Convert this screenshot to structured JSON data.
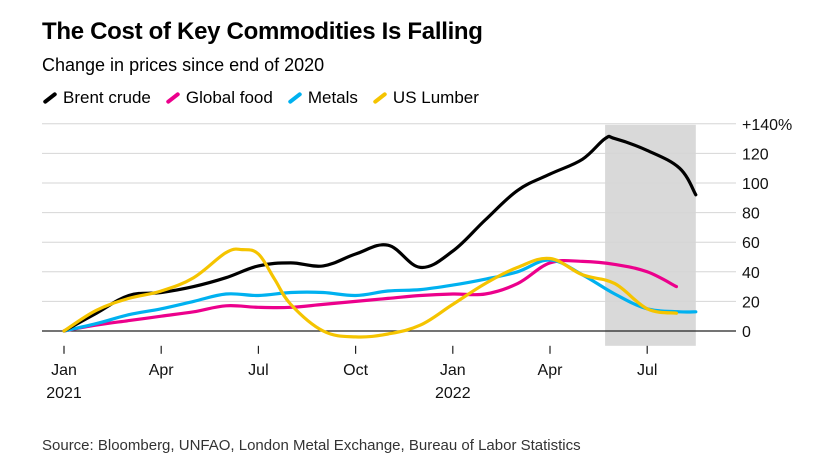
{
  "title": "The Cost of Key Commodities Is Falling",
  "subtitle": "Change in prices since end of 2020",
  "source": "Source: Bloomberg, UNFAO, London Metal Exchange, Bureau of Labor Statistics",
  "colors": {
    "brent": "#000000",
    "food": "#ec008c",
    "metals": "#00b1f0",
    "lumber": "#f5c400",
    "shade": "#d9d9d9",
    "grid": "#d6d6d6"
  },
  "chart_data": {
    "type": "line",
    "title": "The Cost of Key Commodities Is Falling",
    "subtitle": "Change in prices since end of 2020",
    "xlabel": "",
    "ylabel": "",
    "x_unit": "months since end of 2020",
    "xlim": [
      0,
      20.5
    ],
    "ylim": [
      -10,
      140
    ],
    "y_ticks": [
      {
        "value": 140,
        "label": "+140%"
      },
      {
        "value": 120,
        "label": "120"
      },
      {
        "value": 100,
        "label": "100"
      },
      {
        "value": 80,
        "label": "80"
      },
      {
        "value": 60,
        "label": "60"
      },
      {
        "value": 40,
        "label": "40"
      },
      {
        "value": 20,
        "label": "20"
      },
      {
        "value": 0,
        "label": "0"
      }
    ],
    "x_ticks": [
      {
        "value": 0,
        "label": "Jan",
        "year": "2021"
      },
      {
        "value": 3,
        "label": "Apr"
      },
      {
        "value": 6,
        "label": "Jul"
      },
      {
        "value": 9,
        "label": "Oct"
      },
      {
        "value": 12,
        "label": "Jan",
        "year": "2022"
      },
      {
        "value": 15,
        "label": "Apr"
      },
      {
        "value": 18,
        "label": "Jul"
      }
    ],
    "highlight_range": [
      16.7,
      19.5
    ],
    "legend_position": "top-left",
    "series": [
      {
        "name": "Brent crude",
        "color_key": "brent",
        "x": [
          0,
          1,
          2,
          3,
          4,
          5,
          6,
          7,
          8,
          9,
          10,
          11,
          12,
          13,
          14,
          15,
          16,
          16.7,
          17,
          18,
          19,
          19.5
        ],
        "y": [
          0,
          12,
          24,
          26,
          30,
          36,
          44,
          46,
          44,
          52,
          58,
          43,
          54,
          75,
          95,
          106,
          116,
          130,
          130,
          122,
          110,
          92
        ]
      },
      {
        "name": "Global food",
        "color_key": "food",
        "x": [
          0,
          1,
          2,
          3,
          4,
          5,
          6,
          7,
          8,
          9,
          10,
          11,
          12,
          13,
          14,
          15,
          16,
          17,
          18,
          18.9
        ],
        "y": [
          0,
          4,
          7,
          10,
          13,
          17,
          16,
          16,
          18,
          20,
          22,
          24,
          25,
          25,
          32,
          46,
          47,
          45,
          40,
          30
        ]
      },
      {
        "name": "Metals",
        "color_key": "metals",
        "x": [
          0,
          1,
          2,
          3,
          4,
          5,
          6,
          7,
          8,
          9,
          10,
          11,
          12,
          13,
          14,
          15,
          16,
          17,
          18,
          19,
          19.5
        ],
        "y": [
          0,
          5,
          11,
          15,
          20,
          25,
          24,
          26,
          26,
          24,
          27,
          28,
          31,
          35,
          40,
          48,
          38,
          25,
          15,
          13,
          13
        ]
      },
      {
        "name": "US Lumber",
        "color_key": "lumber",
        "x": [
          0,
          1,
          2,
          3,
          4,
          5,
          5.5,
          6,
          6.5,
          7,
          8,
          9,
          10,
          11,
          12,
          13,
          14,
          15,
          16,
          17,
          18,
          18.9
        ],
        "y": [
          0,
          14,
          22,
          27,
          36,
          53,
          55,
          52,
          35,
          18,
          0,
          -4,
          -2,
          4,
          18,
          32,
          43,
          49,
          38,
          32,
          15,
          12
        ]
      }
    ]
  }
}
